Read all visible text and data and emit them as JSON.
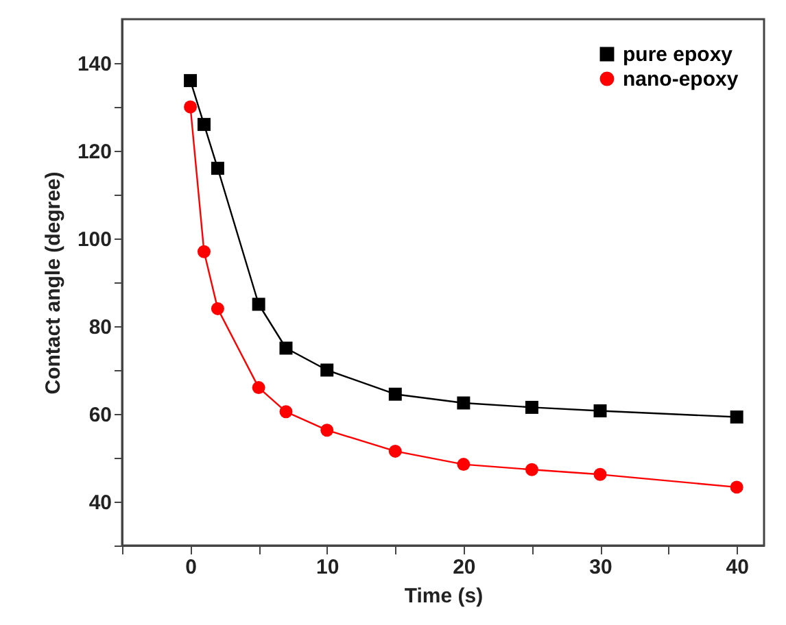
{
  "chart_data": {
    "type": "line",
    "xlabel": "Time (s)",
    "ylabel": "Contact angle (degree)",
    "x": [
      0,
      1,
      2,
      5,
      7,
      10,
      15,
      20,
      25,
      30,
      40
    ],
    "series": [
      {
        "name": "pure epoxy",
        "color": "#000000",
        "marker": "square",
        "values": [
          136,
          126,
          116,
          85,
          75,
          70,
          64.5,
          62.5,
          61.5,
          60.7,
          59.3
        ]
      },
      {
        "name": "nano-epoxy",
        "color": "#ff0000",
        "marker": "circle",
        "values": [
          130,
          97,
          84,
          66,
          60.5,
          56.3,
          51.5,
          48.5,
          47.3,
          46.2,
          43.3
        ]
      }
    ],
    "xlim": [
      -5,
      42
    ],
    "xticks": [
      {
        "value": -5,
        "label": null
      },
      0,
      {
        "value": 5,
        "label": null
      },
      10,
      {
        "value": 15,
        "label": null
      },
      20,
      {
        "value": 25,
        "label": null
      },
      30,
      {
        "value": 35,
        "label": null
      },
      40
    ],
    "ylim": [
      30,
      150
    ],
    "yticks": [
      {
        "value": 30,
        "label": null
      },
      40,
      {
        "value": 50,
        "label": null
      },
      60,
      {
        "value": 70,
        "label": null
      },
      80,
      {
        "value": 90,
        "label": null
      },
      100,
      {
        "value": 110,
        "label": null
      },
      120,
      {
        "value": 130,
        "label": null
      },
      140
    ],
    "legend": "top right",
    "grid": false,
    "line_style": "solid"
  }
}
